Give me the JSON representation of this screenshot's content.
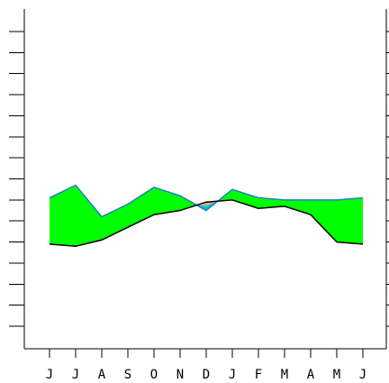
{
  "chart_data": {
    "type": "area",
    "categories": [
      "J",
      "J",
      "A",
      "S",
      "O",
      "N",
      "D",
      "J",
      "F",
      "M",
      "A",
      "M",
      "J"
    ],
    "ylim": [
      0,
      14
    ],
    "y_tick_count": 15,
    "grid": false,
    "legend": "none",
    "series": [
      {
        "values": [
          6.1,
          6.7,
          5.2,
          5.8,
          6.6,
          6.2,
          5.5,
          6.5,
          6.1,
          6.0,
          6.0,
          6.0,
          6.1
        ]
      },
      {
        "values": [
          3.9,
          3.8,
          4.1,
          4.7,
          5.3,
          5.5,
          5.9,
          6.0,
          5.6,
          5.7,
          5.3,
          4.0,
          3.9
        ]
      }
    ],
    "colors": {
      "fill_above": "#00ff00",
      "fill_below_upper": "#00bcd4",
      "fill_below_lower": "#c8b27a",
      "line_upper": "#1e7fd0",
      "line_lower": "#000000",
      "axis": "#000000"
    }
  }
}
